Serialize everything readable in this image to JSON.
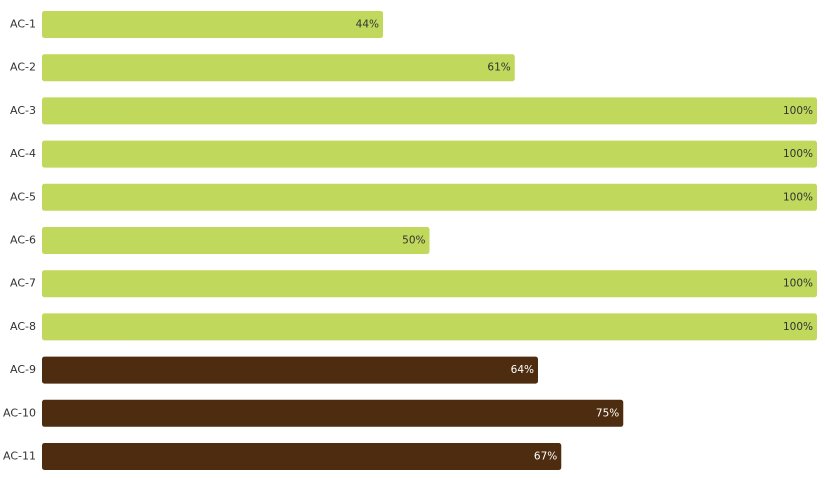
{
  "chart_data": {
    "type": "bar",
    "orientation": "horizontal",
    "categories": [
      "AC-1",
      "AC-2",
      "AC-3",
      "AC-4",
      "AC-5",
      "AC-6",
      "AC-7",
      "AC-8",
      "AC-9",
      "AC-10",
      "AC-11"
    ],
    "values": [
      44,
      61,
      100,
      100,
      100,
      50,
      100,
      100,
      64,
      75,
      67
    ],
    "value_labels": [
      "44%",
      "61%",
      "100%",
      "100%",
      "100%",
      "50%",
      "100%",
      "100%",
      "64%",
      "75%",
      "67%"
    ],
    "bar_colors": [
      "#c0d85c",
      "#c0d85c",
      "#c0d85c",
      "#c0d85c",
      "#c0d85c",
      "#c0d85c",
      "#c0d85c",
      "#c0d85c",
      "#4d2c0f",
      "#4d2c0f",
      "#4d2c0f"
    ],
    "label_colors": [
      "#333333",
      "#333333",
      "#333333",
      "#333333",
      "#333333",
      "#333333",
      "#333333",
      "#333333",
      "#ffffff",
      "#ffffff",
      "#ffffff"
    ],
    "xlim": [
      0,
      100
    ],
    "unit": "%",
    "grid": false,
    "title": "",
    "xlabel": "",
    "ylabel": ""
  }
}
